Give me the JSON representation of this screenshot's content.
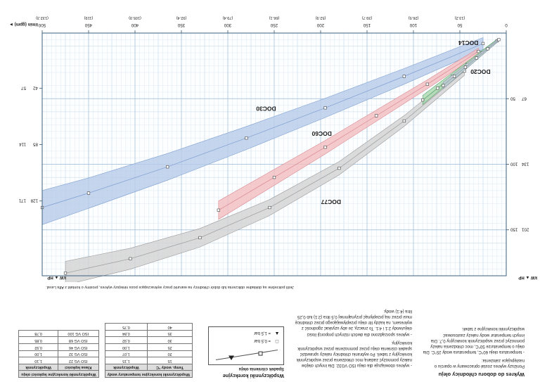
{
  "intro": {
    "title": "Wykres do doboru chłodnicy oleju",
    "col1_p1": "Poniższy wykres został opracowany w oparciu o następujące założenia:",
    "col1_p2": "- temperatura oleju 60°C, temperatura wody 25°C. Dla oleju o temperaturze 50°C, moc chłodzenia należy pomnożyć przez współczynnik korekcyjny 0,7. Dla innych temperatur wody należy zastosować współczynniki korekcyjne z tabeli.",
    "col2_p1": "- wykres obowiązuje dla oleju ISO VG32. Dla innych olejów należy pomnożyć zadaną moc chłodzenia przez współczynnik korekcyjny z tabeli. Po wybraniu chłodnicy należy sprawdzić spadek ciśnienia oleju przez pomnożenie przez współczynnik korekcyjny.",
    "col2_p2": "- wykres sporządzono dla dwóch różnych proporcji ilości oleju/wody 2:1 i 4:1. To znaczy, że aby uzyskać zgodność z wykresem, na każdy litr oleju przepływającego przez chłodnicę musi przez nią przepłynąć przynajmniej 0,5 litra (2:1) lub 0,25 litra (4:1) wody.",
    "footnote": "Jeśli potrzebne są dokładne obliczenia lub dobór chłodnicy na warunki pracy wykraczające poza niniejszy wykres, prosimy o kontakt z Alfa Laval."
  },
  "correction": {
    "title": "Współczynniki korekcyjne",
    "legend_title": "Spadek ciśnienia oleju",
    "legend": [
      {
        "symbol": "□",
        "label": "= 0,5 bar"
      },
      {
        "symbol": "▲",
        "label": "= 1,5 bar"
      }
    ],
    "tables": [
      {
        "caption": "Współczynniki korekcyjne temperatury wody",
        "columns": [
          "Temp. wody °C",
          "Współczynnik"
        ],
        "rows": [
          [
            "15",
            "1,15"
          ],
          [
            "20",
            "1,07"
          ],
          [
            "25",
            "1,00"
          ],
          [
            "30",
            "0,92"
          ],
          [
            "35",
            "0,84"
          ],
          [
            "40",
            "0,75"
          ]
        ]
      },
      {
        "caption": "Współczynniki korekcyjne lepkości oleju",
        "columns": [
          "Klasa lepkości",
          "Współczynnik"
        ],
        "rows": [
          [
            "ISO VG 22",
            "1,10"
          ],
          [
            "ISO VG 32",
            "1,00"
          ],
          [
            "ISO VG 46",
            "0,92"
          ],
          [
            "ISO VG 68",
            "0,85"
          ],
          [
            "ISO VG 100",
            "0,78"
          ]
        ]
      }
    ]
  },
  "chart_data": {
    "type": "area",
    "title": "",
    "grid": true,
    "x_axis": {
      "label": "l/min (gpm) ►",
      "lim": [
        0,
        500
      ],
      "ticks": [
        {
          "lmin": "0",
          "gpm": ""
        },
        {
          "lmin": "50",
          "gpm": "(13.2)"
        },
        {
          "lmin": "100",
          "gpm": "(26.5)"
        },
        {
          "lmin": "150",
          "gpm": "(39.7)"
        },
        {
          "lmin": "200",
          "gpm": "(52.9)"
        },
        {
          "lmin": "250",
          "gpm": "(66.1)"
        },
        {
          "lmin": "300",
          "gpm": "(79.4)"
        },
        {
          "lmin": "350",
          "gpm": "(92.4)"
        },
        {
          "lmin": "400",
          "gpm": "(105.9)"
        },
        {
          "lmin": "450",
          "gpm": "(119)"
        },
        {
          "lmin": "500",
          "gpm": "(132.3)"
        }
      ]
    },
    "ylim_kw": [
      0,
      185
    ],
    "y_axis_left": {
      "label": "kW ▲ HP",
      "ticks": [
        {
          "kw": "50",
          "hp": "67"
        },
        {
          "kw": "100",
          "hp": "134"
        },
        {
          "kw": "150",
          "hp": "201"
        }
      ]
    },
    "y_axis_right": {
      "label": "kW ▲ HP",
      "ticks": [
        {
          "kw": "42",
          "hp": "57"
        },
        {
          "kw": "85",
          "hp": "114"
        },
        {
          "kw": "128",
          "hp": "171"
        }
      ]
    },
    "series": [
      {
        "name": "DOC77",
        "x": [
          45,
          110,
          180,
          255,
          330,
          405,
          475
        ],
        "y": [
          29,
          67,
          103,
          133,
          156,
          172,
          183
        ],
        "halfwidth": 9,
        "band_color": "#d2d2d2",
        "edge_color": "#9a9a9a",
        "label_color": "#2b2b2b",
        "label_at": [
          178,
          127
        ]
      },
      {
        "name": "DOC30",
        "x": [
          25,
          110,
          195,
          280,
          365,
          450,
          500
        ],
        "y": [
          8,
          33,
          57,
          80,
          102,
          122,
          133
        ],
        "halfwidth": 13,
        "band_color": "#b6cbe9",
        "edge_color": "#7d9fd0",
        "label_color": "#1c4f9c",
        "label_at": [
          248,
          56
        ]
      },
      {
        "name": "DOC60",
        "x": [
          30,
          85,
          140,
          195,
          250,
          310
        ],
        "y": [
          14,
          39,
          63,
          87,
          110,
          135
        ],
        "halfwidth": 7,
        "band_color": "#f3bdc1",
        "edge_color": "#d98a90",
        "label_color": "#cc2525",
        "label_at": [
          188,
          75
        ]
      },
      {
        "name": "DOC20",
        "x": [
          10,
          26,
          42,
          58,
          74,
          90
        ],
        "y": [
          6,
          15,
          24,
          33,
          42,
          51
        ],
        "halfwidth": 3.5,
        "band_color": "#abd9b2",
        "edge_color": "#57a468",
        "label_color": "#0b7d6e",
        "label_at": [
          17,
          28
        ]
      },
      {
        "name": "DOC14",
        "x": [
          8,
          20,
          32,
          44,
          56,
          68
        ],
        "y": [
          5,
          12,
          19,
          26,
          33,
          40
        ],
        "halfwidth": 2.5,
        "band_color": "#c2cdd8",
        "edge_color": "#8a97a5",
        "label_color": "#111111",
        "label_at": [
          30,
          6
        ]
      }
    ]
  }
}
